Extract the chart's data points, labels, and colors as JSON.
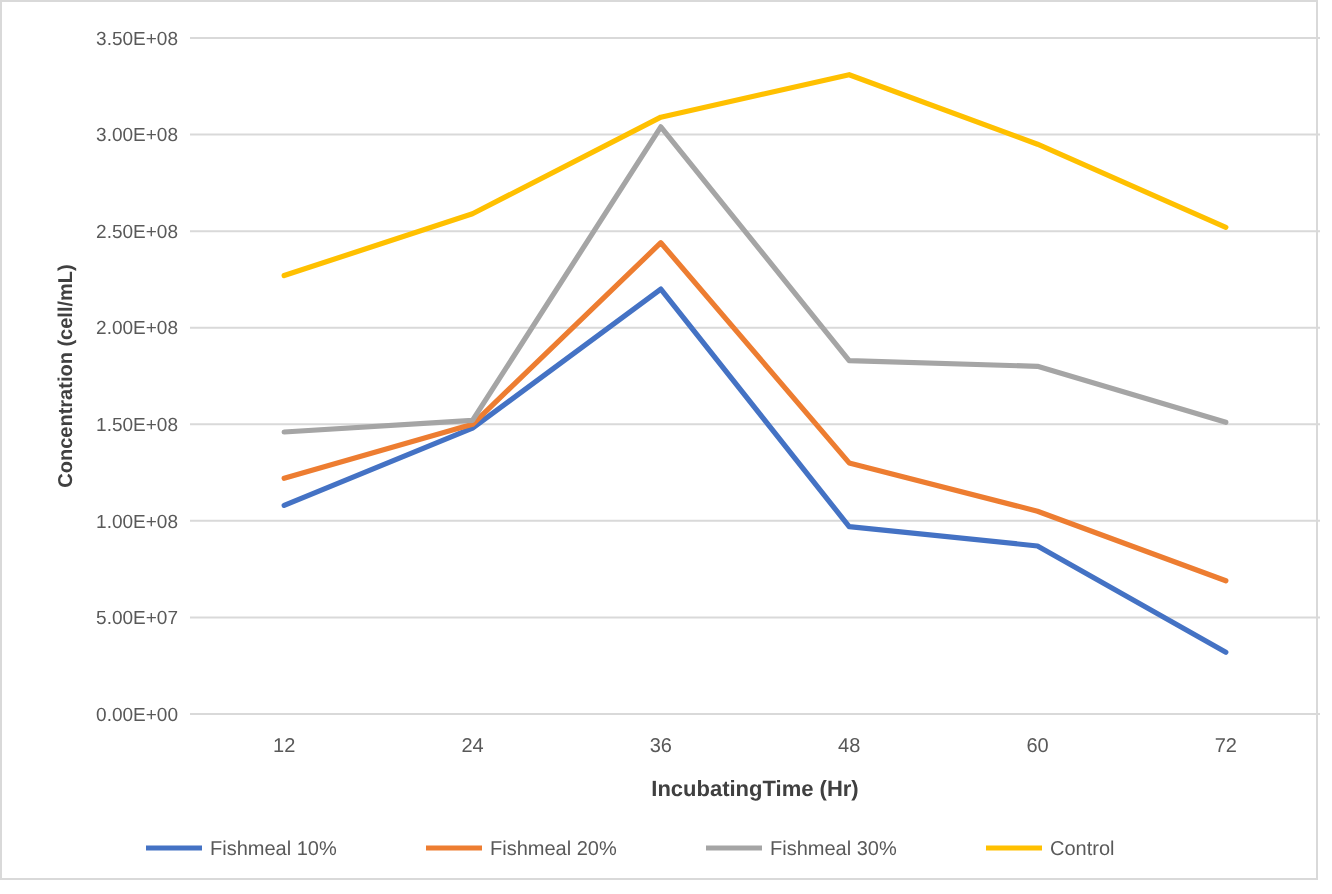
{
  "chart_data": {
    "type": "line",
    "xlabel": "IncubatingTime (Hr)",
    "ylabel": "Concentration (cell/mL)",
    "categories": [
      "12",
      "24",
      "36",
      "48",
      "60",
      "72"
    ],
    "series": [
      {
        "name": "Fishmeal 10%",
        "color": "#4472c4",
        "values": [
          108000000,
          148000000,
          220000000,
          97000000,
          87000000,
          32000000
        ]
      },
      {
        "name": "Fishmeal 20%",
        "color": "#ed7d31",
        "values": [
          122000000,
          150000000,
          244000000,
          130000000,
          105000000,
          69000000
        ]
      },
      {
        "name": "Fishmeal 30%",
        "color": "#a5a5a5",
        "values": [
          146000000,
          152000000,
          304000000,
          183000000,
          180000000,
          151000000
        ]
      },
      {
        "name": "Control",
        "color": "#ffc000",
        "values": [
          227000000,
          259000000,
          309000000,
          331000000,
          295000000,
          252000000
        ]
      }
    ],
    "ylim": [
      0,
      350000000
    ],
    "yticks": [
      {
        "value": 0,
        "label": "0.00E+00"
      },
      {
        "value": 50000000,
        "label": "5.00E+07"
      },
      {
        "value": 100000000,
        "label": "1.00E+08"
      },
      {
        "value": 150000000,
        "label": "1.50E+08"
      },
      {
        "value": 200000000,
        "label": "2.00E+08"
      },
      {
        "value": 250000000,
        "label": "2.50E+08"
      },
      {
        "value": 300000000,
        "label": "3.00E+08"
      },
      {
        "value": 350000000,
        "label": "3.50E+08"
      }
    ],
    "grid": "y",
    "legend": "bottom",
    "marker": "none",
    "line_style": "solid"
  }
}
